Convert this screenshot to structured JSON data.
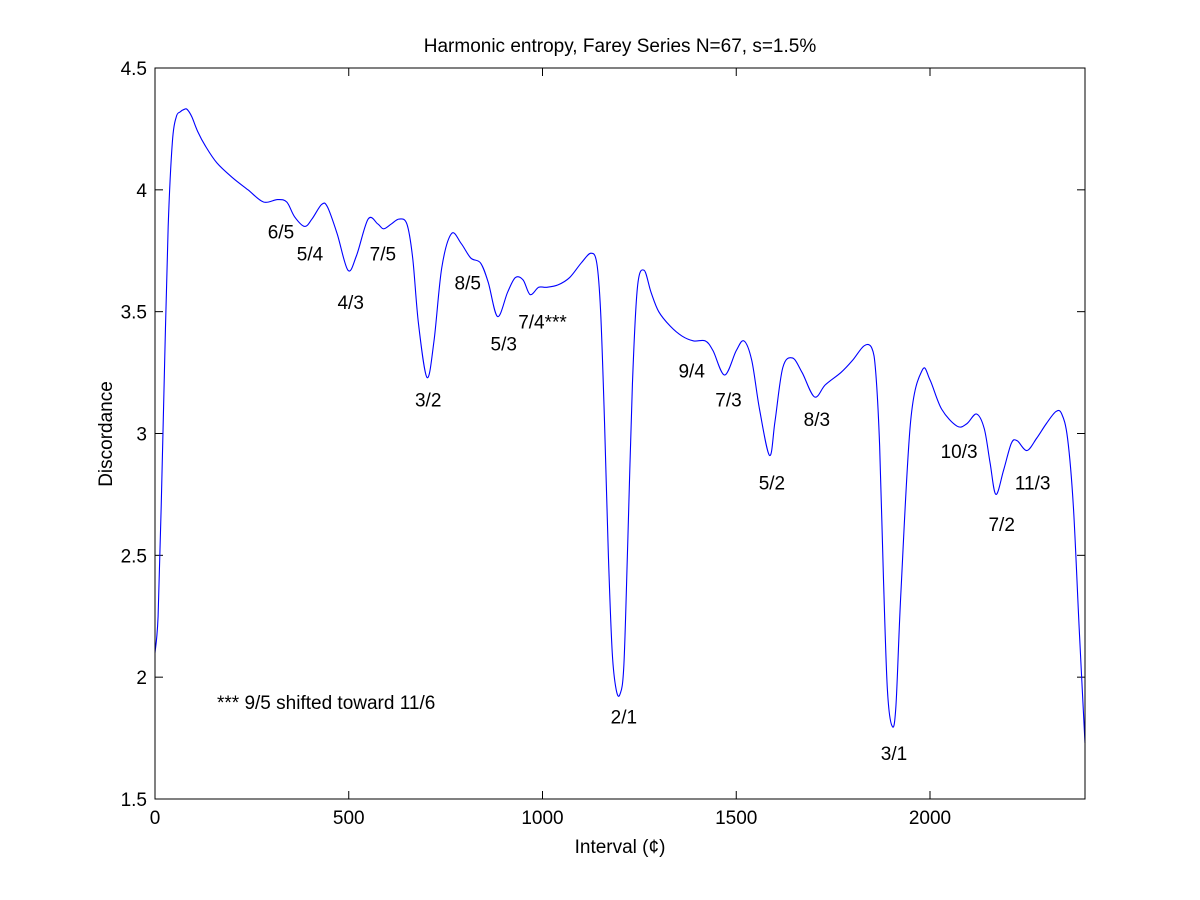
{
  "chart_data": {
    "type": "line",
    "title": "Harmonic entropy, Farey Series N=67, s=1.5%",
    "xlabel": "Interval (¢)",
    "ylabel": "Discordance",
    "xlim": [
      0,
      2400
    ],
    "ylim": [
      1.5,
      4.5
    ],
    "grid": false,
    "line_color": "#0000ff",
    "x_ticks": [
      0,
      500,
      1000,
      1500,
      2000
    ],
    "x_tick_labels": [
      "0",
      "500",
      "1000",
      "1500",
      "2000"
    ],
    "y_ticks": [
      1.5,
      2,
      2.5,
      3,
      3.5,
      4,
      4.5
    ],
    "y_tick_labels": [
      "1.5",
      "2",
      "2.5",
      "3",
      "3.5",
      "4",
      "4.5"
    ],
    "series": [
      {
        "x": [
          0,
          8,
          16,
          25,
          34,
          45,
          55,
          65,
          75,
          83,
          95,
          110,
          130,
          160,
          200,
          240,
          280,
          316,
          340,
          360,
          386,
          405,
          430,
          445,
          470,
          498,
          520,
          550,
          575,
          590,
          610,
          630,
          650,
          665,
          680,
          702,
          720,
          740,
          765,
          790,
          815,
          840,
          860,
          884,
          910,
          930,
          950,
          968,
          990,
          1010,
          1040,
          1070,
          1100,
          1125,
          1140,
          1150,
          1160,
          1170,
          1180,
          1190,
          1200,
          1210,
          1220,
          1232,
          1245,
          1262,
          1280,
          1300,
          1330,
          1360,
          1390,
          1420,
          1440,
          1470,
          1500,
          1520,
          1540,
          1560,
          1586,
          1600,
          1620,
          1645,
          1670,
          1702,
          1730,
          1770,
          1800,
          1830,
          1850,
          1860,
          1870,
          1880,
          1890,
          1902,
          1912,
          1925,
          1950,
          1980,
          2000,
          2030,
          2070,
          2095,
          2120,
          2140,
          2155,
          2170,
          2190,
          2210,
          2225,
          2250,
          2275,
          2300,
          2325,
          2340,
          2355,
          2370,
          2385,
          2400
        ],
        "y": [
          2.1,
          2.25,
          2.7,
          3.3,
          3.85,
          4.2,
          4.3,
          4.32,
          4.33,
          4.33,
          4.3,
          4.24,
          4.18,
          4.11,
          4.05,
          4.0,
          3.95,
          3.96,
          3.95,
          3.89,
          3.85,
          3.88,
          3.94,
          3.93,
          3.82,
          3.67,
          3.73,
          3.88,
          3.86,
          3.84,
          3.86,
          3.88,
          3.86,
          3.72,
          3.45,
          3.23,
          3.38,
          3.68,
          3.82,
          3.78,
          3.72,
          3.7,
          3.62,
          3.48,
          3.58,
          3.64,
          3.63,
          3.57,
          3.6,
          3.6,
          3.61,
          3.64,
          3.7,
          3.74,
          3.7,
          3.5,
          3.05,
          2.5,
          2.1,
          1.95,
          1.93,
          2.05,
          2.55,
          3.2,
          3.6,
          3.67,
          3.58,
          3.5,
          3.44,
          3.4,
          3.38,
          3.38,
          3.34,
          3.24,
          3.34,
          3.38,
          3.3,
          3.1,
          2.91,
          3.05,
          3.27,
          3.31,
          3.25,
          3.15,
          3.2,
          3.25,
          3.3,
          3.36,
          3.35,
          3.25,
          2.95,
          2.4,
          1.95,
          1.8,
          1.88,
          2.35,
          3.05,
          3.26,
          3.22,
          3.1,
          3.03,
          3.04,
          3.08,
          3.02,
          2.88,
          2.75,
          2.85,
          2.96,
          2.97,
          2.93,
          2.98,
          3.04,
          3.09,
          3.08,
          2.98,
          2.7,
          2.2,
          1.73
        ]
      }
    ],
    "annotations": [
      {
        "text": "6/5",
        "x": 325,
        "y": 3.8
      },
      {
        "text": "5/4",
        "x": 400,
        "y": 3.71
      },
      {
        "text": "7/5",
        "x": 588,
        "y": 3.71
      },
      {
        "text": "4/3",
        "x": 505,
        "y": 3.51
      },
      {
        "text": "8/5",
        "x": 807,
        "y": 3.59
      },
      {
        "text": "7/4***",
        "x": 1000,
        "y": 3.43
      },
      {
        "text": "5/3",
        "x": 900,
        "y": 3.34
      },
      {
        "text": "3/2",
        "x": 705,
        "y": 3.11
      },
      {
        "text": "2/1",
        "x": 1210,
        "y": 1.81
      },
      {
        "text": "9/4",
        "x": 1385,
        "y": 3.23
      },
      {
        "text": "7/3",
        "x": 1480,
        "y": 3.11
      },
      {
        "text": "8/3",
        "x": 1708,
        "y": 3.03
      },
      {
        "text": "5/2",
        "x": 1592,
        "y": 2.77
      },
      {
        "text": "10/3",
        "x": 2075,
        "y": 2.9
      },
      {
        "text": "11/3",
        "x": 2265,
        "y": 2.77
      },
      {
        "text": "7/2",
        "x": 2185,
        "y": 2.6
      },
      {
        "text": "3/1",
        "x": 1907,
        "y": 1.66
      },
      {
        "text": "*** 9/5 shifted toward 11/6",
        "x": 160,
        "y": 1.87,
        "anchor": "start"
      }
    ]
  }
}
